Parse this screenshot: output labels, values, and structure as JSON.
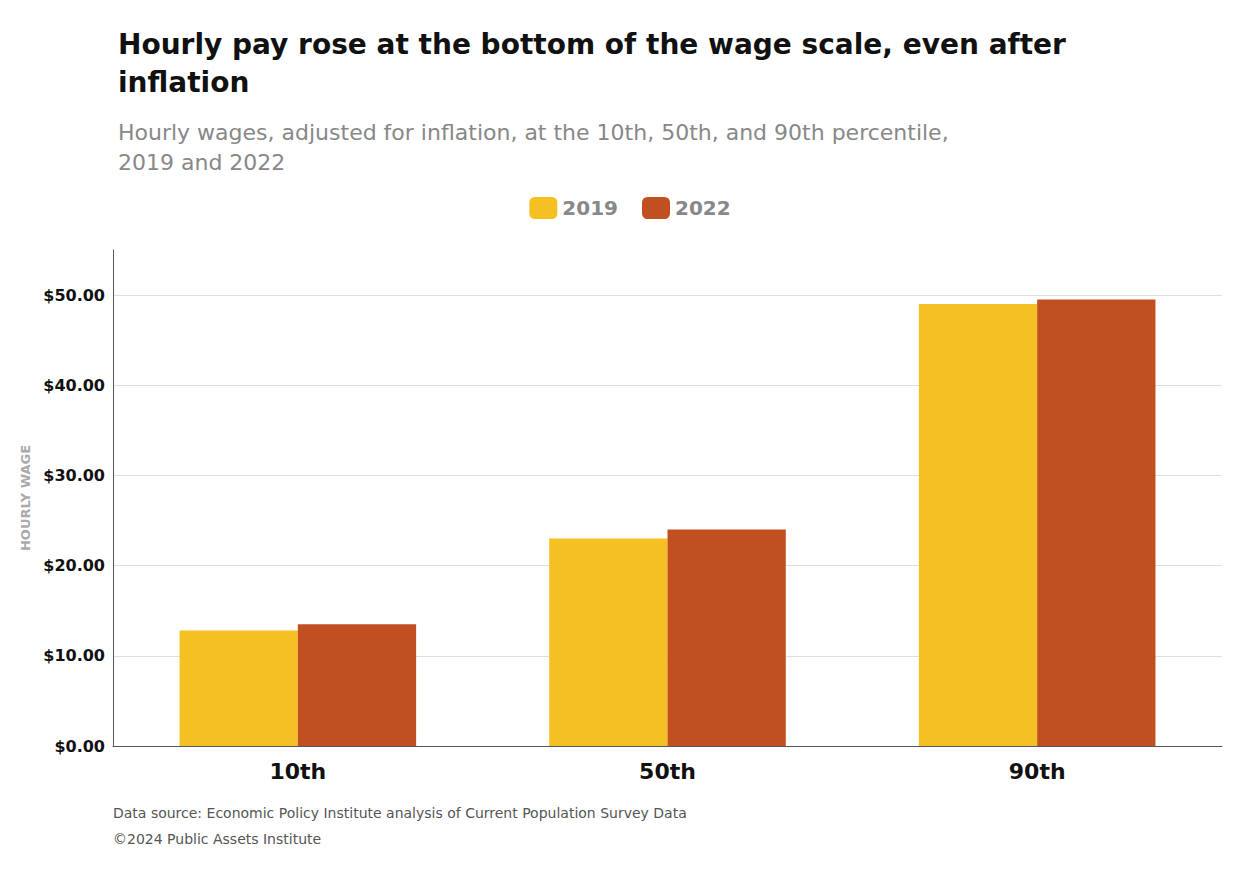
{
  "chart_data": {
    "type": "bar",
    "title": "Hourly pay rose at the bottom of the wage scale, even after inflation",
    "subtitle": "Hourly wages, adjusted for inflation, at the 10th, 50th, and 90th percentile, 2019 and 2022",
    "categories": [
      "10th",
      "50th",
      "90th"
    ],
    "series": [
      {
        "name": "2019",
        "color": "#F5C021",
        "values": [
          12.8,
          23.0,
          49.0
        ]
      },
      {
        "name": "2022",
        "color": "#C05020",
        "values": [
          13.5,
          24.0,
          49.5
        ]
      }
    ],
    "ylabel": "HOURLY WAGE",
    "ylim": [
      0,
      55
    ],
    "yticks": [
      {
        "value": 0,
        "label": "$0.00"
      },
      {
        "value": 10,
        "label": "$10.00"
      },
      {
        "value": 20,
        "label": "$20.00"
      },
      {
        "value": 30,
        "label": "$30.00"
      },
      {
        "value": 40,
        "label": "$40.00"
      },
      {
        "value": 50,
        "label": "$50.00"
      }
    ],
    "grid": true,
    "legend": "top",
    "annotations": [
      "Data source: Economic Policy Institute analysis of Current Population Survey Data",
      "©2024 Public Assets Institute"
    ]
  }
}
